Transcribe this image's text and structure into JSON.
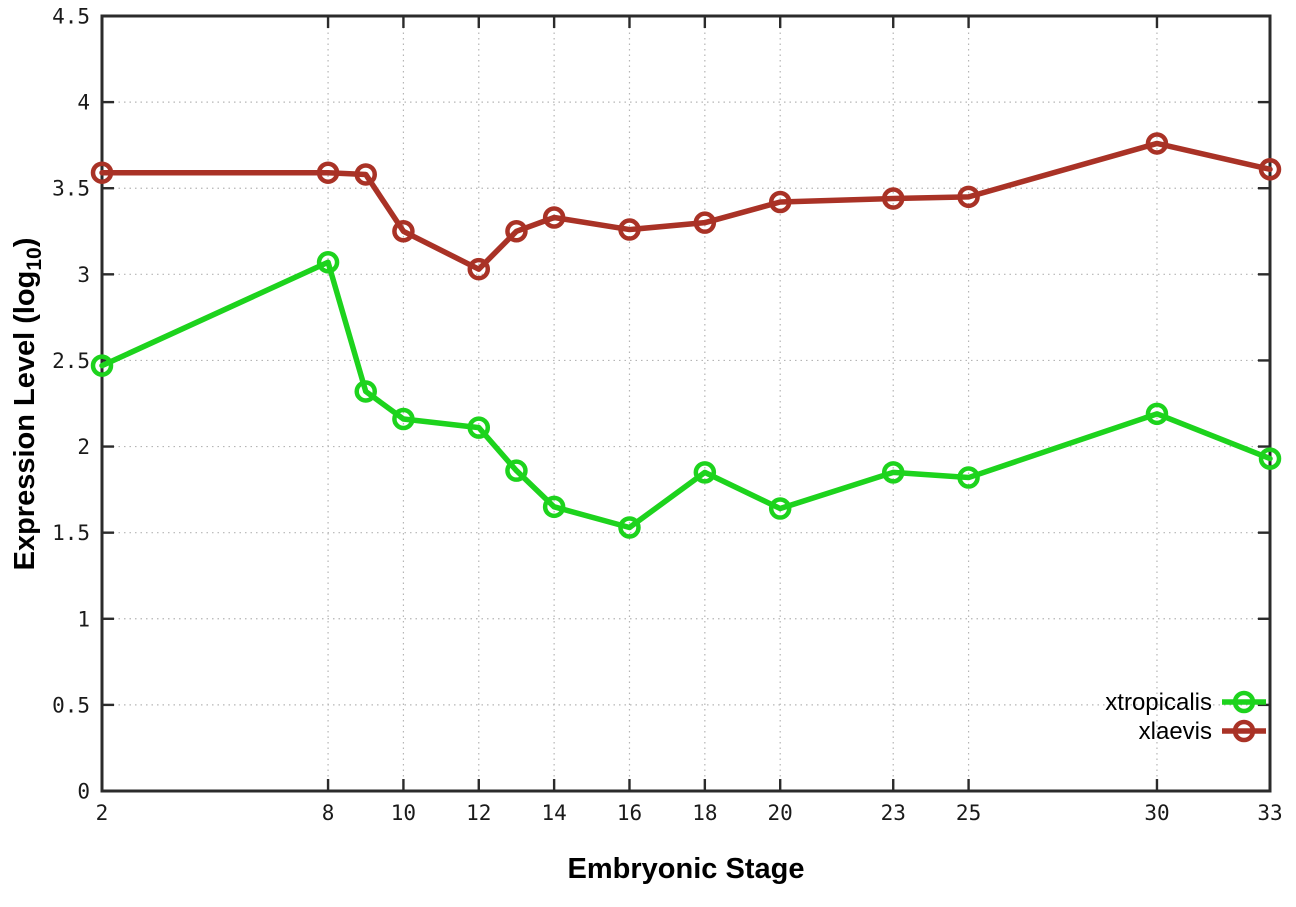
{
  "chart_data": {
    "type": "line",
    "title": "",
    "xlabel": "Embryonic Stage",
    "ylabel": "Expression Level (log10)",
    "ylabel_parts": {
      "prefix": "Expression Level (log",
      "sub": "10",
      "suffix": ")"
    },
    "x": [
      2,
      8,
      9,
      10,
      12,
      13,
      14,
      16,
      18,
      20,
      23,
      25,
      30,
      33
    ],
    "series": [
      {
        "name": "xtropicalis",
        "color": "#1dd31d",
        "values": [
          2.47,
          3.07,
          2.32,
          2.16,
          2.11,
          1.86,
          1.65,
          1.53,
          1.85,
          1.64,
          1.85,
          1.82,
          2.19,
          1.93
        ]
      },
      {
        "name": "xlaevis",
        "color": "#a93226",
        "values": [
          3.59,
          3.59,
          3.58,
          3.25,
          3.03,
          3.25,
          3.33,
          3.26,
          3.3,
          3.42,
          3.44,
          3.45,
          3.76,
          3.61
        ]
      }
    ],
    "xlim": [
      2,
      33
    ],
    "ylim": [
      0,
      4.5
    ],
    "x_ticks": [
      2,
      8,
      10,
      12,
      14,
      16,
      18,
      20,
      23,
      25,
      30,
      33
    ],
    "y_ticks": [
      0,
      0.5,
      1,
      1.5,
      2,
      2.5,
      3,
      3.5,
      4,
      4.5
    ],
    "grid": true,
    "legend_position": "inside-bottom-right",
    "marker": "open-circle",
    "style": {
      "grid_color": "#b5b5b5",
      "axis_color": "#2b2b2b",
      "background": "#ffffff"
    }
  }
}
